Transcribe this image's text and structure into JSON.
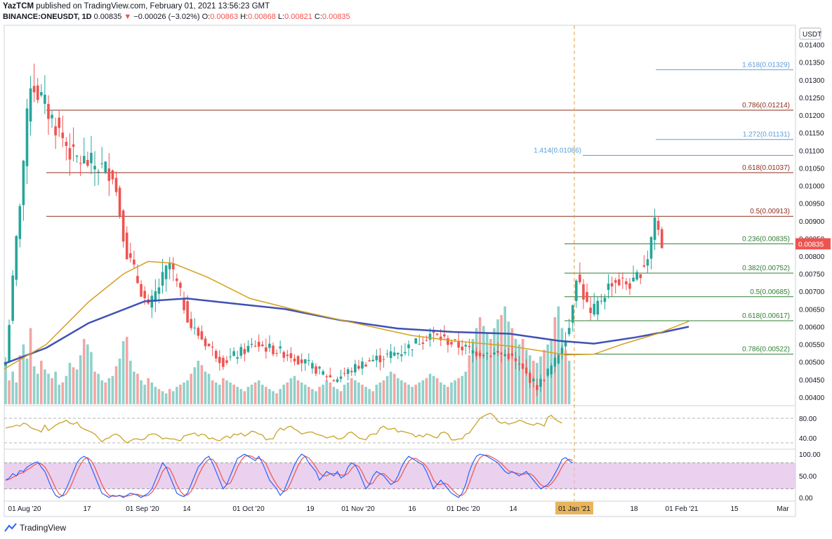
{
  "header": {
    "author": "YazTCM",
    "published_text": "published on TradingView.com, February 01, 2021 13:56:23 GMT",
    "symbol_line": "BINANCE:ONEUSDT, 1D",
    "last": "0.00835",
    "change_arrow": "▼",
    "change": "−0.00026 (−3.02%)",
    "o_label": "O:",
    "o": "0.00863",
    "h_label": "H:",
    "h": "0.00868",
    "l_label": "L:",
    "l": "0.00821",
    "c_label": "C:",
    "c": "0.00835"
  },
  "footer": {
    "brand": "TradingView"
  },
  "colors": {
    "up": "#26a69a",
    "down": "#ef5350",
    "ma_blue": "#3f51b5",
    "ma_gold": "#d4a020",
    "fib_ext": "#5b9bd5",
    "fib_red": "#8b2e1a",
    "fib_green": "#2e7d32",
    "rsi": "#c9a227",
    "stoch_k": "#2962ff",
    "stoch_d": "#ef5350",
    "stoch_band": "#e1bee7"
  },
  "chart_data": [
    {
      "type": "candlestick",
      "currency_label": "USDT",
      "current_price_label": "0.00835",
      "ylim": [
        0.0038,
        0.01435
      ],
      "y_ticks": [
        "0.00400",
        "0.00450",
        "0.00500",
        "0.00550",
        "0.00600",
        "0.00650",
        "0.00700",
        "0.00750",
        "0.00800",
        "0.00850",
        "0.00900",
        "0.00950",
        "0.01000",
        "0.01050",
        "0.01100",
        "0.01150",
        "0.01200",
        "0.01250",
        "0.01300",
        "0.01350",
        "0.01400"
      ],
      "x_ticks": [
        "01 Aug '20",
        "17",
        "01 Sep '20",
        "14",
        "01 Oct '20",
        "19",
        "01 Nov '20",
        "16",
        "01 Dec '20",
        "14",
        "01 Jan '21",
        "18",
        "01 Feb '21",
        "15",
        "Mar"
      ],
      "highlighted_x_tick": "01 Jan '21",
      "key_closes": [
        {
          "date": "2020-08-01",
          "close": 0.005
        },
        {
          "date": "2020-08-08",
          "close": 0.013
        },
        {
          "date": "2020-08-20",
          "close": 0.0108
        },
        {
          "date": "2020-08-31",
          "close": 0.0104
        },
        {
          "date": "2020-09-04",
          "close": 0.0081
        },
        {
          "date": "2020-09-10",
          "close": 0.0065
        },
        {
          "date": "2020-09-16",
          "close": 0.0078
        },
        {
          "date": "2020-09-22",
          "close": 0.006
        },
        {
          "date": "2020-10-01",
          "close": 0.005
        },
        {
          "date": "2020-10-10",
          "close": 0.0055
        },
        {
          "date": "2020-10-20",
          "close": 0.0052
        },
        {
          "date": "2020-11-01",
          "close": 0.0045
        },
        {
          "date": "2020-11-10",
          "close": 0.005
        },
        {
          "date": "2020-11-20",
          "close": 0.0053
        },
        {
          "date": "2020-11-28",
          "close": 0.0058
        },
        {
          "date": "2020-12-10",
          "close": 0.0053
        },
        {
          "date": "2020-12-20",
          "close": 0.0052
        },
        {
          "date": "2020-12-28",
          "close": 0.0043
        },
        {
          "date": "2021-01-02",
          "close": 0.005
        },
        {
          "date": "2021-01-06",
          "close": 0.006
        },
        {
          "date": "2021-01-08",
          "close": 0.0075
        },
        {
          "date": "2021-01-12",
          "close": 0.0063
        },
        {
          "date": "2021-01-18",
          "close": 0.0073
        },
        {
          "date": "2021-01-24",
          "close": 0.0072
        },
        {
          "date": "2021-01-28",
          "close": 0.008
        },
        {
          "date": "2021-01-30",
          "close": 0.0091
        },
        {
          "date": "2021-02-01",
          "close": 0.00835
        }
      ],
      "fib_levels": [
        {
          "label": "1.618(0.01329)",
          "value": 0.01329,
          "kind": "ext"
        },
        {
          "label": "0.786(0.01214)",
          "value": 0.01214,
          "kind": "red"
        },
        {
          "label": "1.272(0.01131)",
          "value": 0.01131,
          "kind": "ext"
        },
        {
          "label": "1.414(0.01086)",
          "value": 0.01086,
          "kind": "ext"
        },
        {
          "label": "0.618(0.01037)",
          "value": 0.01037,
          "kind": "red"
        },
        {
          "label": "0.5(0.00913)",
          "value": 0.00913,
          "kind": "red"
        },
        {
          "label": "0.236(0.00835)",
          "value": 0.00835,
          "kind": "green"
        },
        {
          "label": "0.382(0.00752)",
          "value": 0.00752,
          "kind": "green"
        },
        {
          "label": "0.5(0.00685)",
          "value": 0.00685,
          "kind": "green"
        },
        {
          "label": "0.618(0.00617)",
          "value": 0.00617,
          "kind": "green"
        },
        {
          "label": "0.786(0.00522)",
          "value": 0.00522,
          "kind": "green"
        }
      ],
      "moving_averages": [
        {
          "color": "ma_blue",
          "points": [
            [
              0,
              0.00495
            ],
            [
              60,
              0.0054
            ],
            [
              120,
              0.0061
            ],
            [
              200,
              0.00672
            ],
            [
              260,
              0.0068
            ],
            [
              330,
              0.00665
            ],
            [
              400,
              0.0065
            ],
            [
              480,
              0.00618
            ],
            [
              560,
              0.00595
            ],
            [
              640,
              0.00585
            ],
            [
              720,
              0.0058
            ],
            [
              790,
              0.0056
            ],
            [
              840,
              0.00552
            ],
            [
              900,
              0.0057
            ],
            [
              940,
              0.00585
            ],
            [
              975,
              0.006
            ]
          ]
        },
        {
          "color": "ma_gold",
          "points": [
            [
              0,
              0.0048
            ],
            [
              60,
              0.0055
            ],
            [
              120,
              0.0067
            ],
            [
              170,
              0.0075
            ],
            [
              205,
              0.00785
            ],
            [
              240,
              0.0078
            ],
            [
              290,
              0.0074
            ],
            [
              350,
              0.0068
            ],
            [
              420,
              0.00645
            ],
            [
              500,
              0.0061
            ],
            [
              580,
              0.00575
            ],
            [
              640,
              0.0056
            ],
            [
              720,
              0.00545
            ],
            [
              800,
              0.0052
            ],
            [
              840,
              0.00522
            ],
            [
              880,
              0.0055
            ],
            [
              930,
              0.0058
            ],
            [
              975,
              0.00615
            ]
          ]
        }
      ]
    },
    {
      "type": "line",
      "name": "RSI",
      "ylim": [
        20,
        100
      ],
      "y_ticks": [
        "80.00",
        "40.00"
      ],
      "values": [
        60,
        62,
        63,
        66,
        64,
        70,
        68,
        61,
        58,
        56,
        52,
        66,
        55,
        60,
        66,
        70,
        72,
        76,
        70,
        68,
        72,
        62,
        58,
        55,
        52,
        48,
        40,
        32,
        38,
        40,
        46,
        48,
        44,
        36,
        30,
        34,
        38,
        38,
        36,
        38,
        46,
        48,
        48,
        44,
        38,
        40,
        38,
        38,
        36,
        34,
        44,
        46,
        48,
        50,
        44,
        48,
        46,
        38,
        40,
        36,
        34,
        40,
        44,
        40,
        48,
        46,
        50,
        44,
        48,
        54,
        52,
        48,
        46,
        36,
        38,
        38,
        52,
        60,
        56,
        62,
        64,
        58,
        54,
        48,
        50,
        52,
        52,
        48,
        46,
        44,
        40,
        42,
        44,
        38,
        38,
        42,
        50,
        52,
        46,
        40,
        38,
        36,
        46,
        48,
        48,
        60,
        64,
        58,
        58,
        60,
        52,
        54,
        52,
        50,
        48,
        42,
        46,
        42,
        48,
        46,
        42,
        40,
        50,
        52,
        48,
        36,
        36,
        38,
        38,
        48,
        50,
        60,
        70,
        80,
        84,
        88,
        90,
        84,
        74,
        70,
        72,
        68,
        70,
        72,
        76,
        74,
        70,
        68,
        66,
        70,
        68,
        64,
        82,
        86,
        78,
        74,
        70
      ]
    },
    {
      "type": "line",
      "name": "Stoch RSI",
      "ylim": [
        -5,
        105
      ],
      "y_ticks": [
        "100.00",
        "50.00",
        "0.00"
      ],
      "k": [
        40,
        45,
        55,
        50,
        62,
        60,
        70,
        75,
        80,
        82,
        70,
        60,
        40,
        20,
        5,
        0,
        5,
        20,
        40,
        60,
        80,
        90,
        95,
        90,
        70,
        50,
        30,
        10,
        5,
        0,
        5,
        3,
        5,
        0,
        5,
        10,
        8,
        5,
        0,
        5,
        10,
        20,
        40,
        60,
        80,
        70,
        50,
        30,
        10,
        5,
        2,
        10,
        30,
        50,
        70,
        80,
        90,
        95,
        80,
        60,
        40,
        20,
        30,
        50,
        70,
        90,
        95,
        100,
        95,
        90,
        85,
        95,
        80,
        60,
        40,
        30,
        20,
        5,
        15,
        35,
        55,
        75,
        90,
        100,
        95,
        80,
        70,
        60,
        40,
        50,
        60,
        55,
        50,
        60,
        45,
        50,
        70,
        80,
        75,
        60,
        40,
        20,
        30,
        50,
        60,
        55,
        50,
        40,
        30,
        35,
        50,
        70,
        85,
        95,
        90,
        85,
        80,
        75,
        60,
        40,
        20,
        30,
        40,
        30,
        20,
        10,
        5,
        0,
        10,
        30,
        60,
        80,
        95,
        100,
        98,
        95,
        90,
        85,
        80,
        70,
        60,
        55,
        60,
        55,
        50,
        55,
        60,
        50,
        40,
        30,
        20,
        25,
        30,
        40,
        55,
        70,
        88,
        92,
        85,
        80
      ]
    },
    {
      "type": "bar",
      "name": "Volume",
      "values": [
        38,
        22,
        30,
        20,
        45,
        55,
        42,
        70,
        35,
        28,
        40,
        32,
        28,
        24,
        30,
        18,
        20,
        26,
        38,
        34,
        32,
        45,
        60,
        55,
        48,
        30,
        28,
        22,
        20,
        24,
        26,
        35,
        42,
        58,
        62,
        40,
        30,
        28,
        22,
        18,
        24,
        20,
        16,
        14,
        12,
        10,
        14,
        12,
        16,
        18,
        20,
        22,
        28,
        34,
        40,
        36,
        30,
        28,
        22,
        20,
        18,
        24,
        22,
        20,
        18,
        16,
        14,
        12,
        16,
        18,
        20,
        22,
        18,
        16,
        14,
        12,
        10,
        14,
        18,
        20,
        24,
        26,
        22,
        20,
        18,
        16,
        14,
        12,
        16,
        18,
        22,
        20,
        16,
        14,
        12,
        18,
        20,
        24,
        22,
        20,
        18,
        16,
        14,
        12,
        18,
        20,
        22,
        26,
        30,
        28,
        24,
        22,
        20,
        18,
        16,
        18,
        20,
        22,
        24,
        28,
        26,
        24,
        20,
        18,
        16,
        20,
        22,
        24,
        26,
        30,
        45,
        60,
        70,
        80,
        72,
        66,
        60,
        70,
        78,
        82,
        90,
        76,
        70,
        60,
        55,
        60,
        50,
        45,
        40,
        38,
        44,
        50,
        55,
        60,
        80,
        90,
        70,
        50,
        40
      ]
    }
  ]
}
